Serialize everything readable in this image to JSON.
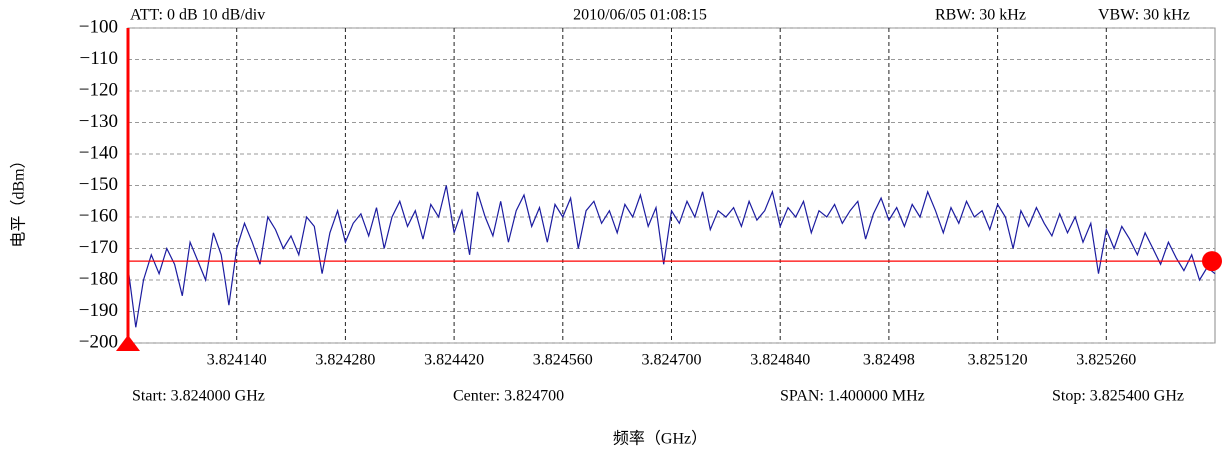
{
  "chart_data": {
    "type": "line",
    "header": [
      "ATT: 0 dB 10 dB/div",
      "2010/06/05 01:08:15",
      "RBW: 30 kHz",
      "VBW: 30 kHz"
    ],
    "footer": [
      "Start: 3.824000 GHz",
      "Center: 3.824700",
      "SPAN: 1.400000 MHz",
      "Stop: 3.825400 GHz"
    ],
    "x_label": "频率（GHz）",
    "y_label": "电平（dBm）",
    "xlim": [
      3.824,
      3.8254
    ],
    "ylim": [
      -200,
      -100
    ],
    "xticks": [
      {
        "value": 3.82414,
        "label": "3.824140"
      },
      {
        "value": 3.82428,
        "label": "3.824280"
      },
      {
        "value": 3.82442,
        "label": "3.824420"
      },
      {
        "value": 3.82456,
        "label": "3.824560"
      },
      {
        "value": 3.8247,
        "label": "3.824700"
      },
      {
        "value": 3.82484,
        "label": "3.824840"
      },
      3.82498,
      {
        "value": 3.82512,
        "label": "3.825120"
      },
      {
        "value": 3.82526,
        "label": "3.825260"
      }
    ],
    "yticks": [
      {
        "value": -100,
        "label": "−100"
      },
      {
        "value": -110,
        "label": "−110"
      },
      {
        "value": -120,
        "label": "−120"
      },
      {
        "value": -130,
        "label": "−130"
      },
      {
        "value": -140,
        "label": "−140"
      },
      {
        "value": -150,
        "label": "−150"
      },
      {
        "value": -160,
        "label": "−160"
      },
      {
        "value": -170,
        "label": "−170"
      },
      {
        "value": -180,
        "label": "−180"
      },
      {
        "value": -190,
        "label": "−190"
      },
      {
        "value": -200,
        "label": "−200"
      }
    ],
    "grid": true,
    "reference_line": -174,
    "reference_color": "#ff0000",
    "marker_x": 3.824,
    "x": [
      3.824,
      3.82401,
      3.82402,
      3.82403,
      3.82404,
      3.82405,
      3.82406,
      3.82407,
      3.82408,
      3.82409,
      3.8241,
      3.82411,
      3.82412,
      3.82413,
      3.82414,
      3.82415,
      3.82416,
      3.82417,
      3.82418,
      3.82419,
      3.8242,
      3.82421,
      3.82422,
      3.82423,
      3.82424,
      3.82425,
      3.82426,
      3.82427,
      3.82428,
      3.82429,
      3.8243,
      3.82431,
      3.82432,
      3.82433,
      3.82434,
      3.82435,
      3.82436,
      3.82437,
      3.82438,
      3.82439,
      3.8244,
      3.82441,
      3.82442,
      3.82443,
      3.82444,
      3.82445,
      3.82446,
      3.82447,
      3.82448,
      3.82449,
      3.8245,
      3.82451,
      3.82452,
      3.82453,
      3.82454,
      3.82455,
      3.82456,
      3.82457,
      3.82458,
      3.82459,
      3.8246,
      3.82461,
      3.82462,
      3.82463,
      3.82464,
      3.82465,
      3.82466,
      3.82467,
      3.82468,
      3.82469,
      3.8247,
      3.82471,
      3.82472,
      3.82473,
      3.82474,
      3.82475,
      3.82476,
      3.82477,
      3.82478,
      3.82479,
      3.8248,
      3.82481,
      3.82482,
      3.82483,
      3.82484,
      3.82485,
      3.82486,
      3.82487,
      3.82488,
      3.82489,
      3.8249,
      3.82491,
      3.82492,
      3.82493,
      3.82494,
      3.82495,
      3.82496,
      3.82497,
      3.82498,
      3.82499,
      3.825,
      3.82501,
      3.82502,
      3.82503,
      3.82504,
      3.82505,
      3.82506,
      3.82507,
      3.82508,
      3.82509,
      3.8251,
      3.82511,
      3.82512,
      3.82513,
      3.82514,
      3.82515,
      3.82516,
      3.82517,
      3.82518,
      3.82519,
      3.8252,
      3.82521,
      3.82522,
      3.82523,
      3.82524,
      3.82525,
      3.82526,
      3.82527,
      3.82528,
      3.82529,
      3.8253,
      3.82531,
      3.82532,
      3.82533,
      3.82534,
      3.82535,
      3.82536,
      3.82537,
      3.82538,
      3.82539,
      3.8254
    ],
    "series": [
      {
        "color": "#1c1ca0",
        "values": [
          -176,
          -195,
          -180,
          -172,
          -178,
          -170,
          -175,
          -185,
          -168,
          -174,
          -180,
          -165,
          -172,
          -188,
          -170,
          -162,
          -168,
          -175,
          -160,
          -164,
          -170,
          -166,
          -172,
          -160,
          -163,
          -178,
          -165,
          -158,
          -168,
          -162,
          -159,
          -166,
          -157,
          -170,
          -160,
          -155,
          -163,
          -158,
          -167,
          -156,
          -160,
          -150,
          -165,
          -158,
          -172,
          -152,
          -160,
          -166,
          -155,
          -168,
          -158,
          -153,
          -163,
          -157,
          -168,
          -156,
          -160,
          -154,
          -170,
          -158,
          -155,
          -162,
          -158,
          -165,
          -156,
          -160,
          -153,
          -163,
          -157,
          -175,
          -158,
          -162,
          -155,
          -160,
          -152,
          -164,
          -158,
          -160,
          -157,
          -163,
          -155,
          -161,
          -158,
          -152,
          -163,
          -157,
          -160,
          -155,
          -165,
          -158,
          -160,
          -156,
          -162,
          -158,
          -155,
          -167,
          -159,
          -154,
          -161,
          -157,
          -163,
          -156,
          -160,
          -152,
          -158,
          -165,
          -157,
          -162,
          -155,
          -160,
          -158,
          -164,
          -156,
          -160,
          -170,
          -158,
          -163,
          -157,
          -162,
          -166,
          -159,
          -165,
          -160,
          -168,
          -162,
          -178,
          -164,
          -170,
          -163,
          -167,
          -172,
          -165,
          -170,
          -175,
          -168,
          -173,
          -177,
          -172,
          -180,
          -176,
          -178
        ]
      }
    ]
  }
}
